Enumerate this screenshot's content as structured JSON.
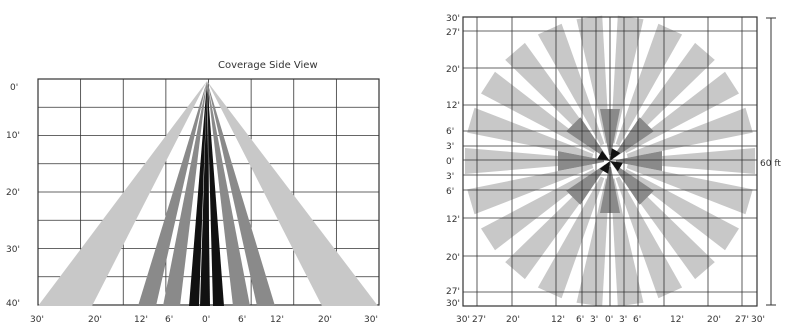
{
  "side_view": {
    "title": "Coverage Side View",
    "y_labels": [
      "0'",
      "10'",
      "20'",
      "30'",
      "40'"
    ],
    "x_labels": [
      "30'",
      "20'",
      "12'",
      "6'",
      "0'",
      "6'",
      "12'",
      "20'",
      "30'"
    ]
  },
  "top_view": {
    "y_labels_upper": [
      "30'",
      "27'",
      "20'",
      "12'",
      "6'",
      "3'",
      "0'"
    ],
    "y_labels_lower": [
      "3'",
      "6'",
      "12'",
      "20'",
      "27'",
      "30'"
    ],
    "x_labels": [
      "30'",
      "27'",
      "20'",
      "12'",
      "6'",
      "3'",
      "0'",
      "3'",
      "6'",
      "12'",
      "20'",
      "27'",
      "30'"
    ],
    "dimension_label": "60 ft"
  },
  "colors": {
    "grid": "#333333",
    "light_gray": "#c8c8c8",
    "mid_gray": "#8a8a8a",
    "dark": "#111111"
  }
}
